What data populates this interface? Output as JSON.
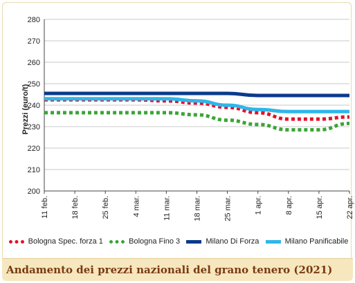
{
  "chart_data": {
    "type": "line",
    "title": "Andamento dei prezzi nazionali del grano tenero (2021)",
    "ylabel": "Prezzi (euro/t)",
    "xlabel": "",
    "ylim": [
      200,
      280
    ],
    "yticks": [
      200,
      210,
      220,
      230,
      240,
      250,
      260,
      270,
      280
    ],
    "x": [
      "11 feb.",
      "18 feb.",
      "25 feb.",
      "4 mar.",
      "11 mar.",
      "18 mar.",
      "25 mar.",
      "1 apr.",
      "8 apr.",
      "15 apr.",
      "22 apr."
    ],
    "grid": "horizontal",
    "legend_position": "bottom",
    "series": [
      {
        "name": "Bologna Spec. forza 1",
        "color": "#e0142b",
        "style": "dotted",
        "values": [
          242.5,
          242.5,
          242.5,
          242.5,
          242.0,
          241.0,
          239.0,
          236.5,
          233.5,
          233.5,
          234.5
        ]
      },
      {
        "name": "Bologna Fino 3",
        "color": "#3aa535",
        "style": "dotted",
        "values": [
          236.5,
          236.5,
          236.5,
          236.5,
          236.5,
          235.5,
          233.0,
          231.0,
          228.5,
          228.5,
          231.5
        ]
      },
      {
        "name": "Milano Di Forza",
        "color": "#0b3a8c",
        "style": "solid",
        "values": [
          245.5,
          245.5,
          245.5,
          245.5,
          245.5,
          245.5,
          245.5,
          244.5,
          244.5,
          244.5,
          244.5
        ]
      },
      {
        "name": "Milano Panificabile",
        "color": "#2fb6ea",
        "style": "solid",
        "values": [
          243.0,
          243.0,
          243.0,
          243.0,
          243.0,
          242.0,
          240.0,
          238.0,
          237.0,
          237.0,
          237.0
        ]
      }
    ]
  }
}
